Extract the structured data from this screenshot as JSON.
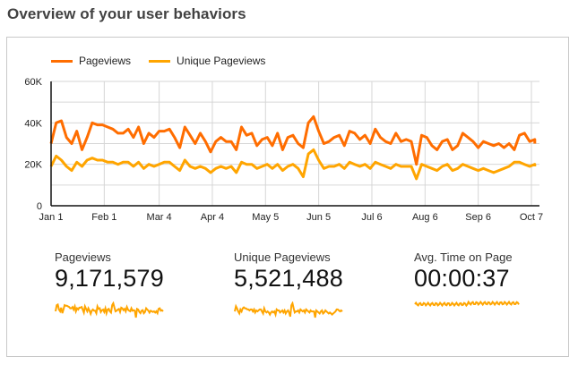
{
  "page": {
    "title": "Overview of your user behaviors"
  },
  "colors": {
    "pageviews": "#ff6d00",
    "unique_pageviews": "#ffa500",
    "grid": "#d6d6d6",
    "axis": "#111111"
  },
  "legend": [
    {
      "name": "Pageviews",
      "color": "#ff6d00"
    },
    {
      "name": "Unique Pageviews",
      "color": "#ffa500"
    }
  ],
  "kpis": [
    {
      "label": "Pageviews",
      "value": "9,171,579"
    },
    {
      "label": "Unique Pageviews",
      "value": "5,521,488"
    },
    {
      "label": "Avg. Time on Page",
      "value": "00:00:37"
    }
  ],
  "chart_data": {
    "type": "line",
    "title": "",
    "xlabel": "",
    "ylabel": "",
    "ylim": [
      0,
      60000
    ],
    "yticks": [
      0,
      20000,
      40000,
      60000
    ],
    "ytick_labels": [
      "0",
      "20K",
      "40K",
      "60K"
    ],
    "xtick_labels": [
      "Jan 1",
      "Feb 1",
      "Mar 4",
      "Apr 4",
      "May 5",
      "Jun 5",
      "Jul 6",
      "Aug 6",
      "Sep 6",
      "Oct 7"
    ],
    "xtick_days": [
      0,
      31,
      63,
      94,
      125,
      156,
      187,
      218,
      249,
      280
    ],
    "x_days_total": 282,
    "grid": true,
    "legend_position": "top-left",
    "sample_interval_days": 3,
    "series": [
      {
        "name": "Pageviews",
        "values": [
          30000,
          40000,
          41000,
          33000,
          30000,
          36000,
          27000,
          33000,
          40000,
          39000,
          39000,
          38000,
          37000,
          35000,
          35000,
          37000,
          33000,
          38000,
          30000,
          35000,
          33000,
          36000,
          36000,
          37000,
          33000,
          28000,
          38000,
          34000,
          30000,
          35000,
          31000,
          26000,
          31000,
          33000,
          31000,
          31000,
          27000,
          38000,
          34000,
          35000,
          29000,
          32000,
          33000,
          29000,
          35000,
          27000,
          33000,
          34000,
          30000,
          28000,
          40000,
          43000,
          36000,
          30000,
          31000,
          33000,
          34000,
          29000,
          36000,
          35000,
          32000,
          34000,
          30000,
          37000,
          33000,
          31000,
          30000,
          35000,
          31000,
          32000,
          31000,
          20000,
          34000,
          33000,
          29000,
          27000,
          31000,
          32000,
          27000,
          29000,
          35000,
          33000,
          31000,
          28000,
          31000,
          30000,
          29000,
          30000,
          28000,
          30000,
          27000,
          34000,
          35000,
          31000,
          32000,
          30000
        ]
      },
      {
        "name": "Unique Pageviews",
        "values": [
          19000,
          24000,
          22000,
          19000,
          17000,
          21000,
          19000,
          22000,
          23000,
          22000,
          22000,
          21000,
          21000,
          20000,
          21000,
          21000,
          19000,
          21000,
          18000,
          20000,
          19000,
          20000,
          21000,
          21000,
          19000,
          17000,
          22000,
          19000,
          18000,
          19000,
          18000,
          16000,
          18000,
          19000,
          18000,
          19000,
          16000,
          21000,
          20000,
          20000,
          18000,
          19000,
          20000,
          18000,
          20000,
          17000,
          19000,
          20000,
          18000,
          14000,
          25000,
          27000,
          22000,
          18000,
          19000,
          19000,
          20000,
          18000,
          21000,
          20000,
          19000,
          20000,
          18000,
          21000,
          20000,
          19000,
          18000,
          20000,
          19000,
          19000,
          19000,
          13000,
          20000,
          19000,
          18000,
          17000,
          19000,
          20000,
          17000,
          18000,
          20000,
          19000,
          18000,
          17000,
          18000,
          17000,
          16000,
          17000,
          18000,
          19000,
          21000,
          21000,
          20000,
          19000,
          20000,
          19000
        ]
      }
    ]
  }
}
